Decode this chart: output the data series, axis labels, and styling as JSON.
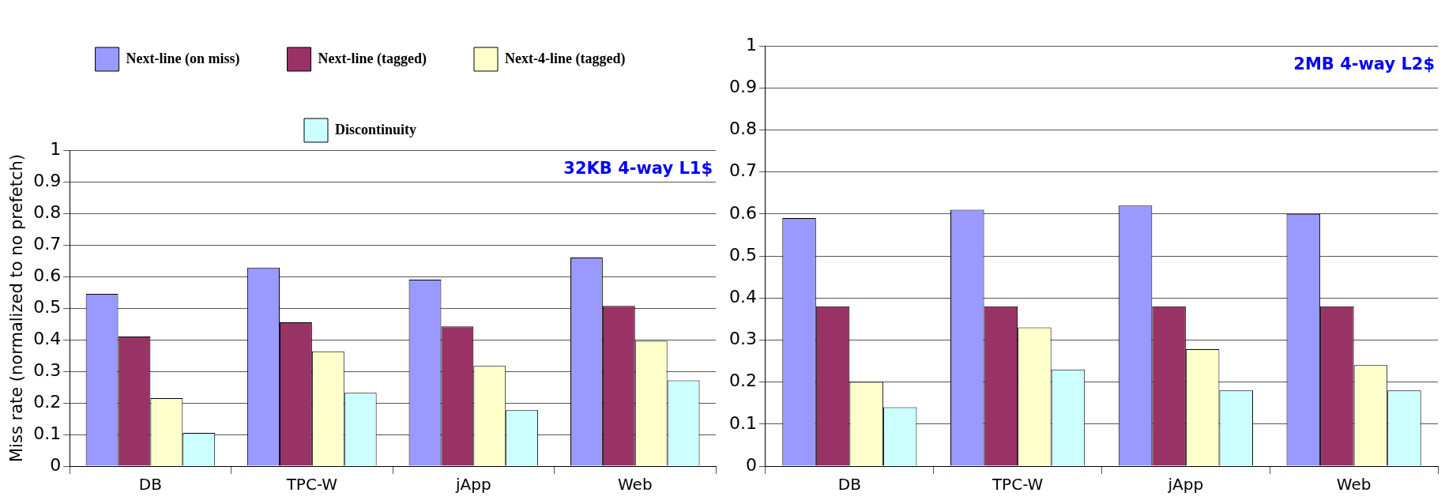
{
  "chart_data": [
    {
      "type": "bar",
      "ylabel": "Miss rate (normalized to no prefetch)",
      "annotations": [
        "32KB 4-way L1$"
      ],
      "categories": [
        "DB",
        "TPC-W",
        "jApp",
        "Web"
      ],
      "ylim": [
        0,
        1
      ],
      "yticks": [
        0,
        0.1,
        0.2,
        0.3,
        0.4,
        0.5,
        0.6,
        0.7,
        0.8,
        0.9,
        1
      ],
      "grid": "y",
      "legend": "top",
      "series": [
        {
          "name": "Next-line (on miss)",
          "color": "#9999ff",
          "values": [
            0.545,
            0.628,
            0.59,
            0.66
          ]
        },
        {
          "name": "Next-line (tagged)",
          "color": "#993366",
          "values": [
            0.41,
            0.455,
            0.442,
            0.507
          ]
        },
        {
          "name": "Next-4-line (tagged)",
          "color": "#ffffcc",
          "values": [
            0.215,
            0.363,
            0.317,
            0.396
          ]
        },
        {
          "name": "Discontinuity",
          "color": "#ccffff",
          "values": [
            0.105,
            0.232,
            0.177,
            0.271
          ]
        }
      ]
    },
    {
      "type": "bar",
      "annotations": [
        "2MB 4-way L2$"
      ],
      "categories": [
        "DB",
        "TPC-W",
        "jApp",
        "Web"
      ],
      "ylim": [
        0,
        1
      ],
      "yticks": [
        0,
        0.1,
        0.2,
        0.3,
        0.4,
        0.5,
        0.6,
        0.7,
        0.8,
        0.9,
        1
      ],
      "grid": "y",
      "legend": false,
      "series": [
        {
          "color": "#9999ff",
          "values": [
            0.59,
            0.61,
            0.62,
            0.6
          ]
        },
        {
          "color": "#993366",
          "values": [
            0.38,
            0.38,
            0.38,
            0.38
          ]
        },
        {
          "color": "#ffffcc",
          "values": [
            0.2,
            0.33,
            0.278,
            0.24
          ]
        },
        {
          "color": "#ccffff",
          "values": [
            0.14,
            0.23,
            0.18,
            0.18
          ]
        }
      ]
    }
  ]
}
